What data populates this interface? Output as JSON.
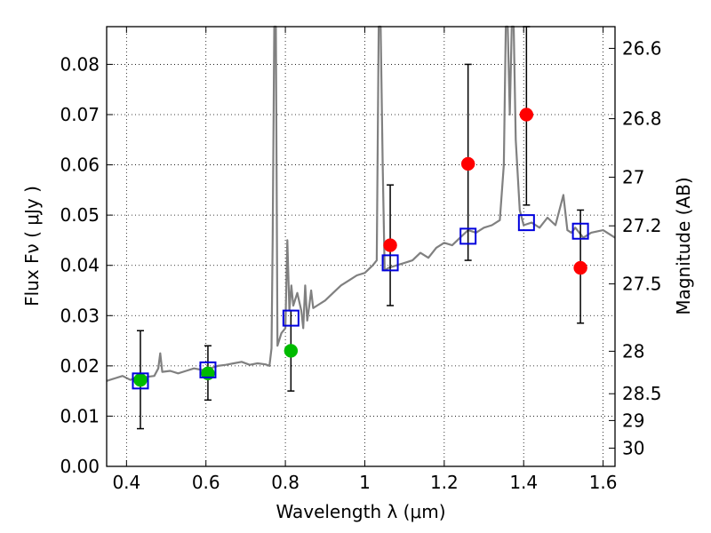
{
  "chart_data": {
    "type": "scatter",
    "xlabel": "Wavelength  λ (μm)",
    "ylabel": "Flux  Fν  ( μJy )",
    "y2label": "Magnitude (AB)",
    "xlim": [
      0.35,
      1.63
    ],
    "ylim": [
      0.0,
      0.0875
    ],
    "grid": true,
    "x_ticks": [
      0.4,
      0.6,
      0.8,
      1.0,
      1.2,
      1.4,
      1.6
    ],
    "x_tick_labels": [
      "0.4",
      "0.6",
      "0.8",
      "1",
      "1.2",
      "1.4",
      "1.6"
    ],
    "y_ticks": [
      0.0,
      0.01,
      0.02,
      0.03,
      0.04,
      0.05,
      0.06,
      0.07,
      0.08
    ],
    "y_tick_labels": [
      "0.00",
      "0.01",
      "0.02",
      "0.03",
      "0.04",
      "0.05",
      "0.06",
      "0.07",
      "0.08"
    ],
    "y2_ticks": [
      26.6,
      26.8,
      27.0,
      27.2,
      27.5,
      28.0,
      28.5,
      29.0,
      30.0
    ],
    "y2_tick_labels": [
      "26.6",
      "26.8",
      "27",
      "27.2",
      "27.5",
      "28",
      "28.5",
      "29",
      "30"
    ],
    "colors": {
      "model": "#808080",
      "observed_optical": "#00bb00",
      "observed_nir": "#ff0000",
      "model_band": "#0000dd",
      "errorbar": "#000000"
    },
    "model_spectrum": {
      "x": [
        0.35,
        0.37,
        0.39,
        0.41,
        0.43,
        0.45,
        0.47,
        0.48,
        0.485,
        0.49,
        0.51,
        0.53,
        0.55,
        0.57,
        0.59,
        0.61,
        0.63,
        0.65,
        0.67,
        0.69,
        0.71,
        0.73,
        0.75,
        0.76,
        0.765,
        0.768,
        0.772,
        0.776,
        0.78,
        0.79,
        0.8,
        0.805,
        0.81,
        0.815,
        0.82,
        0.83,
        0.84,
        0.845,
        0.85,
        0.855,
        0.86,
        0.865,
        0.87,
        0.88,
        0.9,
        0.92,
        0.94,
        0.96,
        0.98,
        1.0,
        1.02,
        1.03,
        1.035,
        1.04,
        1.045,
        1.05,
        1.06,
        1.08,
        1.1,
        1.12,
        1.14,
        1.16,
        1.18,
        1.2,
        1.22,
        1.24,
        1.26,
        1.28,
        1.3,
        1.32,
        1.34,
        1.35,
        1.355,
        1.36,
        1.365,
        1.37,
        1.375,
        1.38,
        1.39,
        1.4,
        1.42,
        1.44,
        1.46,
        1.48,
        1.5,
        1.51,
        1.52,
        1.53,
        1.55,
        1.57,
        1.6,
        1.63
      ],
      "y": [
        0.017,
        0.0175,
        0.018,
        0.0172,
        0.018,
        0.0178,
        0.018,
        0.0195,
        0.0225,
        0.0188,
        0.019,
        0.0185,
        0.019,
        0.0195,
        0.0192,
        0.0195,
        0.02,
        0.0202,
        0.0205,
        0.0208,
        0.0202,
        0.0205,
        0.0203,
        0.02,
        0.0235,
        0.045,
        0.0875,
        0.0875,
        0.024,
        0.0265,
        0.0275,
        0.045,
        0.031,
        0.036,
        0.032,
        0.0345,
        0.031,
        0.0275,
        0.036,
        0.029,
        0.0318,
        0.035,
        0.0315,
        0.032,
        0.033,
        0.0345,
        0.036,
        0.037,
        0.038,
        0.0385,
        0.04,
        0.041,
        0.0875,
        0.0875,
        0.06,
        0.039,
        0.0395,
        0.04,
        0.0405,
        0.041,
        0.0425,
        0.0415,
        0.0435,
        0.0445,
        0.044,
        0.0455,
        0.047,
        0.0465,
        0.0475,
        0.048,
        0.049,
        0.06,
        0.0875,
        0.0875,
        0.07,
        0.0875,
        0.0875,
        0.065,
        0.051,
        0.048,
        0.0485,
        0.0475,
        0.0495,
        0.048,
        0.054,
        0.047,
        0.0465,
        0.0475,
        0.0455,
        0.0465,
        0.047,
        0.0455
      ]
    },
    "series": [
      {
        "marker": "circle",
        "color": "#00bb00",
        "points": [
          {
            "x": 0.435,
            "y": 0.0172,
            "err_low": 0.0075,
            "err_high": 0.027
          },
          {
            "x": 0.605,
            "y": 0.0185,
            "err_low": 0.0132,
            "err_high": 0.024
          },
          {
            "x": 0.814,
            "y": 0.023,
            "err_low": 0.015,
            "err_high": 0.031
          }
        ]
      },
      {
        "marker": "circle",
        "color": "#ff0000",
        "points": [
          {
            "x": 1.064,
            "y": 0.044,
            "err_low": 0.032,
            "err_high": 0.056
          },
          {
            "x": 1.26,
            "y": 0.0602,
            "err_low": 0.041,
            "err_high": 0.08
          },
          {
            "x": 1.407,
            "y": 0.07,
            "err_low": 0.052,
            "err_high": 0.0875
          },
          {
            "x": 1.543,
            "y": 0.0395,
            "err_low": 0.0285,
            "err_high": 0.051
          }
        ]
      },
      {
        "marker": "square-open",
        "color": "#0000dd",
        "points": [
          {
            "x": 0.435,
            "y": 0.017
          },
          {
            "x": 0.605,
            "y": 0.0192
          },
          {
            "x": 0.814,
            "y": 0.0295
          },
          {
            "x": 1.064,
            "y": 0.0405
          },
          {
            "x": 1.26,
            "y": 0.0458
          },
          {
            "x": 1.407,
            "y": 0.0485
          },
          {
            "x": 1.543,
            "y": 0.0468
          }
        ]
      }
    ]
  }
}
